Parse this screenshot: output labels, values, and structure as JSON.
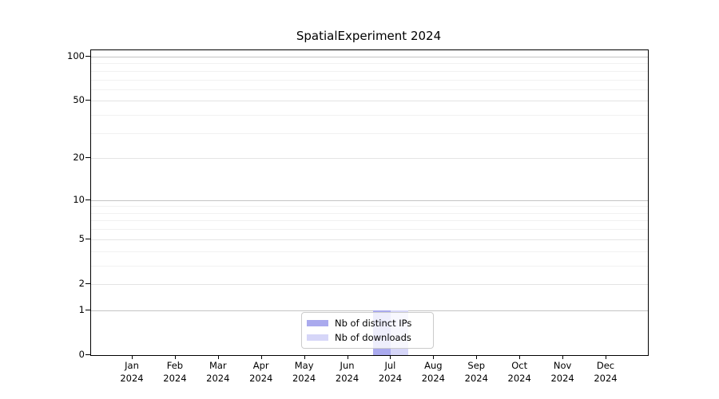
{
  "title": "SpatialExperiment 2024",
  "legend": {
    "items": [
      {
        "label": "Nb of distinct IPs",
        "color": "#aaaaee"
      },
      {
        "label": "Nb of downloads",
        "color": "#d6d6f8"
      }
    ]
  },
  "chart_data": {
    "type": "bar",
    "title": "SpatialExperiment 2024",
    "categories": [
      "Jan 2024",
      "Feb 2024",
      "Mar 2024",
      "Apr 2024",
      "May 2024",
      "Jun 2024",
      "Jul 2024",
      "Aug 2024",
      "Sep 2024",
      "Oct 2024",
      "Nov 2024",
      "Dec 2024"
    ],
    "series": [
      {
        "name": "Nb of distinct IPs",
        "color": "#aaaaee",
        "values": [
          0,
          0,
          0,
          0,
          0,
          0,
          1,
          0,
          0,
          0,
          0,
          0
        ]
      },
      {
        "name": "Nb of downloads",
        "color": "#d6d6f8",
        "values": [
          0,
          0,
          0,
          0,
          0,
          0,
          1,
          0,
          0,
          0,
          0,
          0
        ]
      }
    ],
    "xlabel": "",
    "ylabel": "",
    "yscale": "log1p",
    "ylim": [
      0,
      110
    ],
    "yticks_major": [
      0,
      1,
      2,
      5,
      10,
      20,
      50,
      100
    ],
    "yticks_minor": [
      3,
      4,
      6,
      7,
      8,
      9,
      30,
      40,
      60,
      70,
      80,
      90
    ],
    "grid": "horizontal",
    "legend_position": "lower center inside"
  },
  "colors": {
    "grid_power10": "#c4c4c4",
    "grid_major": "#e4e4e4",
    "grid_minor": "#f1f1f1",
    "axis": "#000000"
  }
}
